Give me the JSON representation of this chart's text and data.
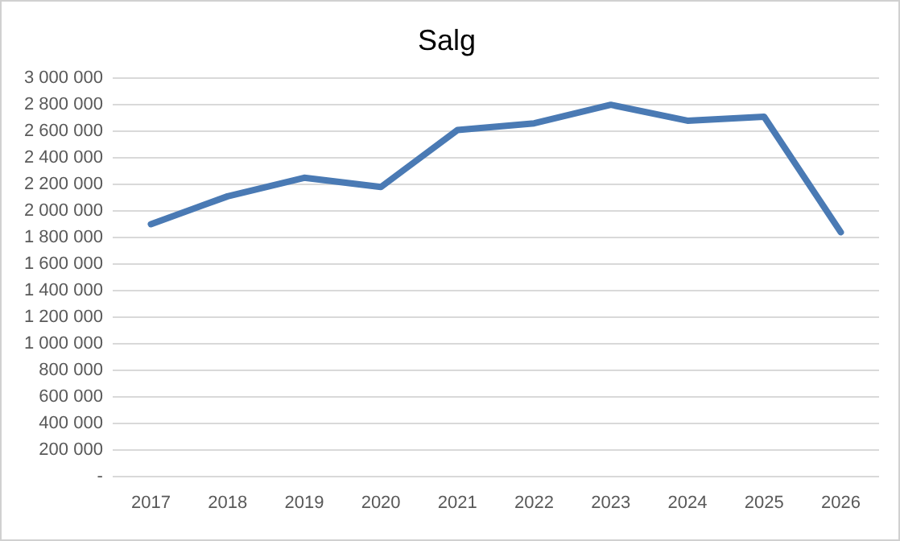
{
  "chart_data": {
    "type": "line",
    "title": "Salg",
    "categories": [
      "2017",
      "2018",
      "2019",
      "2020",
      "2021",
      "2022",
      "2023",
      "2024",
      "2025",
      "2026"
    ],
    "series": [
      {
        "color": "#4a7ab4",
        "values": [
          1900000,
          2110000,
          2250000,
          2180000,
          2610000,
          2660000,
          2800000,
          2680000,
          2710000,
          1840000
        ]
      }
    ],
    "ylim": [
      0,
      3000000
    ],
    "yticks": [
      {
        "value": 0,
        "label": "-"
      },
      {
        "value": 200000,
        "label": "200 000"
      },
      {
        "value": 400000,
        "label": "400 000"
      },
      {
        "value": 600000,
        "label": "600 000"
      },
      {
        "value": 800000,
        "label": "800 000"
      },
      {
        "value": 1000000,
        "label": "1 000 000"
      },
      {
        "value": 1200000,
        "label": "1 200 000"
      },
      {
        "value": 1400000,
        "label": "1 400 000"
      },
      {
        "value": 1600000,
        "label": "1 600 000"
      },
      {
        "value": 1800000,
        "label": "1 800 000"
      },
      {
        "value": 2000000,
        "label": "2 000 000"
      },
      {
        "value": 2200000,
        "label": "2 200 000"
      },
      {
        "value": 2400000,
        "label": "2 400 000"
      },
      {
        "value": 2600000,
        "label": "2 600 000"
      },
      {
        "value": 2800000,
        "label": "2 800 000"
      },
      {
        "value": 3000000,
        "label": "3 000 000"
      }
    ],
    "grid": "y",
    "legend": false,
    "marker": "none",
    "line_style": "solid"
  }
}
